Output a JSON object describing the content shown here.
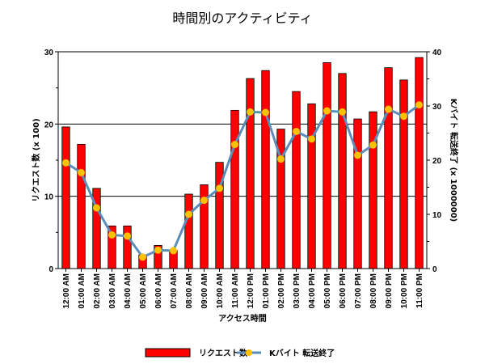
{
  "chart_data": {
    "type": "bar",
    "title": "時間別のアクティビティ",
    "xlabel": "アクセス時間",
    "ylabel": "リクエスト数 (x 100)",
    "y2label": "Kバイト 転送終了 (x 1000000)",
    "categories": [
      "12:00 AM",
      "01:00 AM",
      "02:00 AM",
      "03:00 AM",
      "04:00 AM",
      "05:00 AM",
      "06:00 AM",
      "07:00 AM",
      "08:00 AM",
      "09:00 AM",
      "10:00 AM",
      "11:00 AM",
      "12:00 PM",
      "01:00 PM",
      "02:00 PM",
      "03:00 PM",
      "04:00 PM",
      "05:00 PM",
      "06:00 PM",
      "07:00 PM",
      "08:00 PM",
      "09:00 PM",
      "10:00 PM",
      "11:00 PM"
    ],
    "ylim": [
      0,
      30
    ],
    "y2lim": [
      0,
      40
    ],
    "yticks": [
      0,
      10,
      20,
      30
    ],
    "y2ticks": [
      0,
      10,
      20,
      30,
      40
    ],
    "grid": true,
    "legend": "bottom",
    "series": [
      {
        "name": "リクエスト数",
        "type": "bar",
        "axis": "left",
        "color": "#ff0000",
        "values": [
          19.6,
          17.2,
          11.1,
          5.9,
          5.9,
          1.9,
          3.2,
          2.5,
          10.3,
          11.6,
          14.7,
          21.9,
          26.3,
          27.4,
          19.3,
          24.5,
          22.8,
          28.5,
          27.0,
          20.7,
          21.7,
          27.8,
          26.1,
          29.2
        ]
      },
      {
        "name": "Kバイト 転送終了",
        "type": "line",
        "axis": "right",
        "color": "#5b8db8",
        "marker_color": "#ffc000",
        "values": [
          19.5,
          17.7,
          11.2,
          6.2,
          6.0,
          2.1,
          3.4,
          3.3,
          10.0,
          12.6,
          14.8,
          22.9,
          28.9,
          28.8,
          20.2,
          25.3,
          23.9,
          29.1,
          28.9,
          20.9,
          22.8,
          29.4,
          28.1,
          30.2
        ]
      }
    ]
  }
}
